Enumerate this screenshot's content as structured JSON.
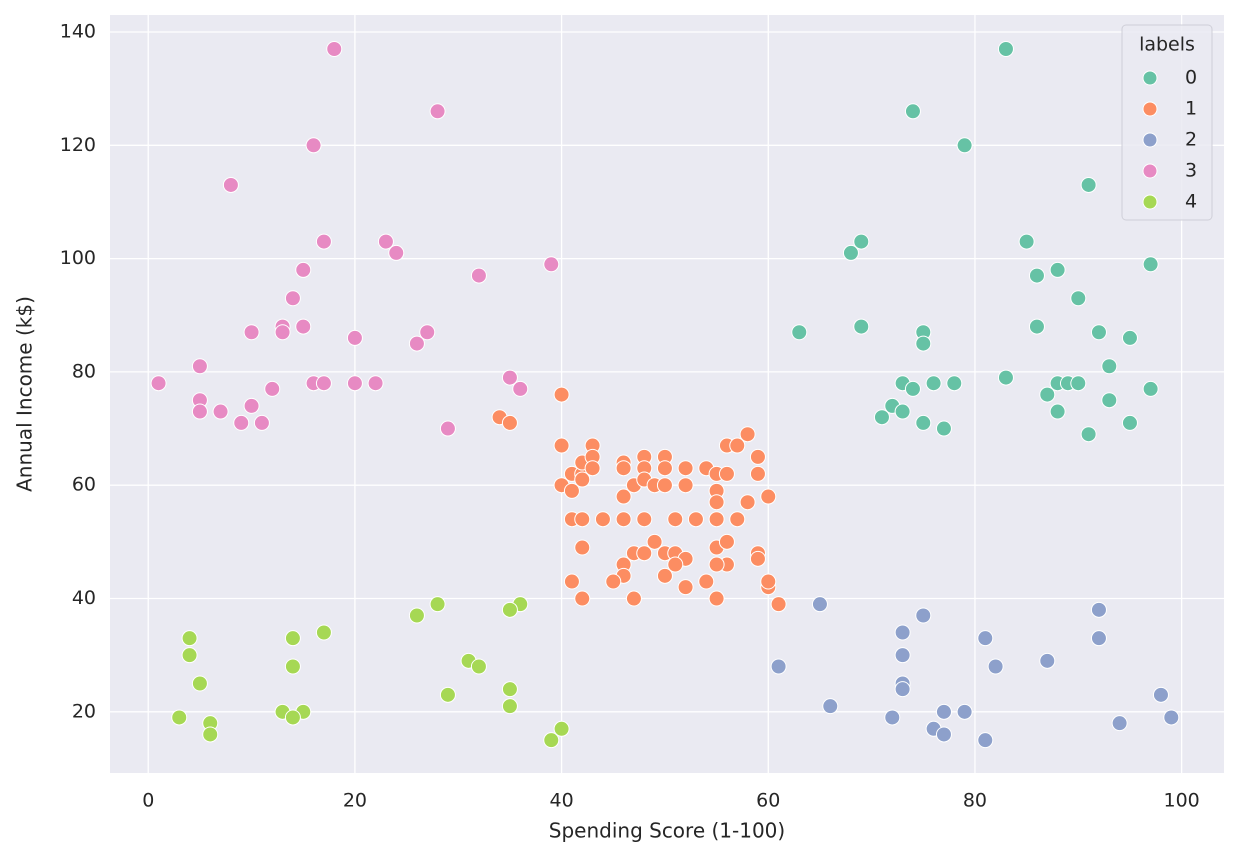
{
  "chart_data": {
    "type": "scatter",
    "xlabel": "Spending Score (1-100)",
    "ylabel": "Annual Income (k$)",
    "legend_title": "labels",
    "legend_loc": "upper right",
    "grid": true,
    "xlim": [
      -3.7,
      104.1
    ],
    "ylim": [
      9.2,
      143
    ],
    "xticks": [
      0,
      20,
      40,
      60,
      80,
      100
    ],
    "yticks": [
      20,
      40,
      60,
      80,
      100,
      120,
      140
    ],
    "series": [
      {
        "name": "0",
        "color": "#66c2a5",
        "x": [
          83,
          74,
          79,
          91,
          68,
          69,
          85,
          97,
          86,
          88,
          90,
          69,
          86,
          63,
          75,
          92,
          95,
          75,
          93,
          83,
          73,
          76,
          78,
          88,
          89,
          90,
          74,
          97,
          87,
          93,
          72,
          73,
          88,
          71,
          75,
          95,
          77,
          91
        ],
        "values": [
          137,
          126,
          120,
          113,
          101,
          103,
          103,
          99,
          97,
          98,
          93,
          88,
          88,
          87,
          87,
          87,
          86,
          85,
          81,
          79,
          78,
          78,
          78,
          78,
          78,
          78,
          77,
          77,
          76,
          75,
          74,
          73,
          73,
          72,
          71,
          71,
          70,
          69
        ]
      },
      {
        "name": "1",
        "color": "#fc8d62",
        "x": [
          34,
          35,
          40,
          40,
          43,
          40,
          41,
          41,
          42,
          42,
          42,
          43,
          43,
          46,
          46,
          46,
          47,
          48,
          48,
          48,
          49,
          50,
          50,
          50,
          52,
          52,
          54,
          55,
          56,
          56,
          57,
          58,
          59,
          59,
          58,
          60,
          41,
          42,
          44,
          46,
          48,
          51,
          53,
          55,
          57,
          55,
          55,
          42,
          47,
          49,
          50,
          51,
          52,
          55,
          56,
          59,
          59,
          46,
          56,
          55,
          51,
          50,
          46,
          45,
          54,
          41,
          60,
          60,
          52,
          42,
          47,
          55,
          61,
          48
        ],
        "values": [
          72,
          71,
          76,
          67,
          67,
          60,
          62,
          59,
          62,
          64,
          61,
          65,
          63,
          64,
          63,
          58,
          60,
          65,
          63,
          61,
          60,
          65,
          63,
          60,
          63,
          60,
          63,
          62,
          67,
          62,
          67,
          69,
          65,
          62,
          57,
          58,
          54,
          54,
          54,
          54,
          54,
          54,
          54,
          54,
          54,
          59,
          57,
          49,
          48,
          50,
          48,
          48,
          47,
          49,
          50,
          48,
          47,
          46,
          46,
          46,
          46,
          44,
          44,
          43,
          43,
          43,
          42,
          43,
          42,
          40,
          40,
          40,
          39,
          48
        ]
      },
      {
        "name": "2",
        "color": "#8da0cb",
        "x": [
          65,
          75,
          92,
          73,
          81,
          92,
          73,
          87,
          61,
          82,
          73,
          73,
          98,
          66,
          77,
          79,
          72,
          99,
          94,
          76,
          77,
          81
        ],
        "values": [
          39,
          37,
          38,
          34,
          33,
          33,
          30,
          29,
          28,
          28,
          25,
          24,
          23,
          21,
          20,
          20,
          19,
          19,
          18,
          17,
          16,
          15
        ]
      },
      {
        "name": "3",
        "color": "#e78ac3",
        "x": [
          18,
          28,
          16,
          8,
          17,
          23,
          24,
          39,
          15,
          32,
          14,
          13,
          15,
          10,
          13,
          27,
          20,
          26,
          5,
          35,
          1,
          16,
          17,
          20,
          22,
          12,
          36,
          5,
          10,
          5,
          7,
          9,
          11,
          29
        ],
        "values": [
          137,
          126,
          120,
          113,
          103,
          103,
          101,
          99,
          98,
          97,
          93,
          88,
          88,
          87,
          87,
          87,
          86,
          85,
          81,
          79,
          78,
          78,
          78,
          78,
          78,
          77,
          77,
          75,
          74,
          73,
          73,
          71,
          71,
          70
        ]
      },
      {
        "name": "4",
        "color": "#a6d854",
        "x": [
          26,
          28,
          36,
          35,
          17,
          4,
          14,
          4,
          31,
          32,
          14,
          5,
          35,
          29,
          35,
          13,
          15,
          14,
          3,
          6,
          40,
          6,
          39
        ],
        "values": [
          37,
          39,
          39,
          38,
          34,
          33,
          33,
          30,
          29,
          28,
          28,
          25,
          24,
          23,
          21,
          20,
          20,
          19,
          19,
          18,
          17,
          16,
          15
        ]
      }
    ]
  }
}
